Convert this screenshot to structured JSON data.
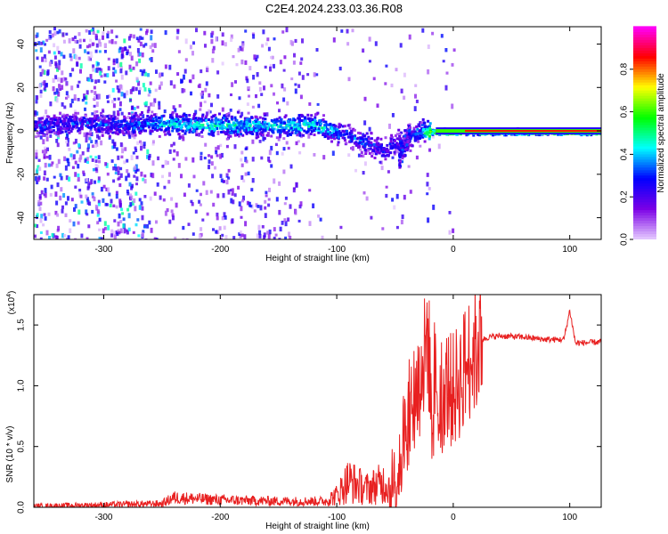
{
  "title": "C2E4.2024.233.03.36.R08",
  "chart_data": [
    {
      "type": "heatmap",
      "xlabel": "Height of straight line (km)",
      "ylabel": "Frequency (Hz)",
      "xlim": [
        -360,
        127
      ],
      "ylim": [
        -50,
        48
      ],
      "x_ticks": [
        -300,
        -200,
        -100,
        0,
        100
      ],
      "x_tick_labels": [
        "-300",
        "-200",
        "-100",
        "0",
        "100"
      ],
      "y_ticks": [
        -40,
        -20,
        0,
        20,
        40
      ],
      "y_tick_labels": [
        "-40",
        "-20",
        "0",
        "20",
        "40"
      ],
      "colorbar": {
        "label": "Normalized spectral amplitude",
        "range": [
          0,
          1
        ],
        "ticks": [
          0.0,
          0.2,
          0.4,
          0.6,
          0.8
        ],
        "tick_labels": [
          "0.0",
          "0.2",
          "0.4",
          "0.6",
          "0.8"
        ],
        "colormap": [
          "#e6ccff",
          "#7b00e6",
          "#0000ff",
          "#00ffff",
          "#00ff00",
          "#ffff00",
          "#ff0000",
          "#ff00ff"
        ]
      },
      "ridge": {
        "x": [
          -360,
          -320,
          -280,
          -250,
          -200,
          -150,
          -120,
          -100,
          -80,
          -60,
          -45,
          -30,
          -15,
          0,
          10,
          127
        ],
        "y": [
          3,
          4,
          3,
          4,
          3,
          3,
          3,
          0,
          -4,
          -8,
          -4,
          0,
          0,
          0,
          0,
          0
        ],
        "amplitude": [
          0.28,
          0.28,
          0.3,
          0.42,
          0.45,
          0.42,
          0.45,
          0.35,
          0.3,
          0.25,
          0.25,
          0.35,
          0.78,
          0.82,
          0.8,
          0.82
        ]
      }
    },
    {
      "type": "line",
      "xlabel": "Height of straight line (km)",
      "ylabel": "SNR (10 * v/v)",
      "y_multiplier": "(x10",
      "y_multiplier_exp": "4",
      "xlim": [
        -360,
        127
      ],
      "ylim": [
        0,
        1.75
      ],
      "x_ticks": [
        -300,
        -200,
        -100,
        0,
        100
      ],
      "x_tick_labels": [
        "-300",
        "-200",
        "-100",
        "0",
        "100"
      ],
      "y_ticks": [
        0.0,
        0.5,
        1.0,
        1.5
      ],
      "y_tick_labels": [
        "0.0",
        "0.5",
        "1.0",
        "1.5"
      ],
      "line_color": "#e82020",
      "series": [
        {
          "x": [
            -360,
            -300,
            -250,
            -240,
            -200,
            -150,
            -110,
            -100,
            -90,
            -75,
            -60,
            -50,
            -45,
            -40,
            -35,
            -30,
            -25,
            -22,
            -20,
            -15,
            -10,
            -5,
            0,
            5,
            10,
            15,
            20,
            25,
            30,
            40,
            60,
            80,
            95,
            100,
            105,
            127
          ],
          "values": [
            0.01,
            0.02,
            0.03,
            0.08,
            0.06,
            0.05,
            0.05,
            0.1,
            0.22,
            0.15,
            0.2,
            0.15,
            0.5,
            0.65,
            0.9,
            1.0,
            1.2,
            1.45,
            1.1,
            1.05,
            0.95,
            1.0,
            0.95,
            1.05,
            1.15,
            1.25,
            1.3,
            1.38,
            1.4,
            1.41,
            1.4,
            1.38,
            1.38,
            1.62,
            1.35,
            1.36
          ]
        }
      ]
    }
  ]
}
